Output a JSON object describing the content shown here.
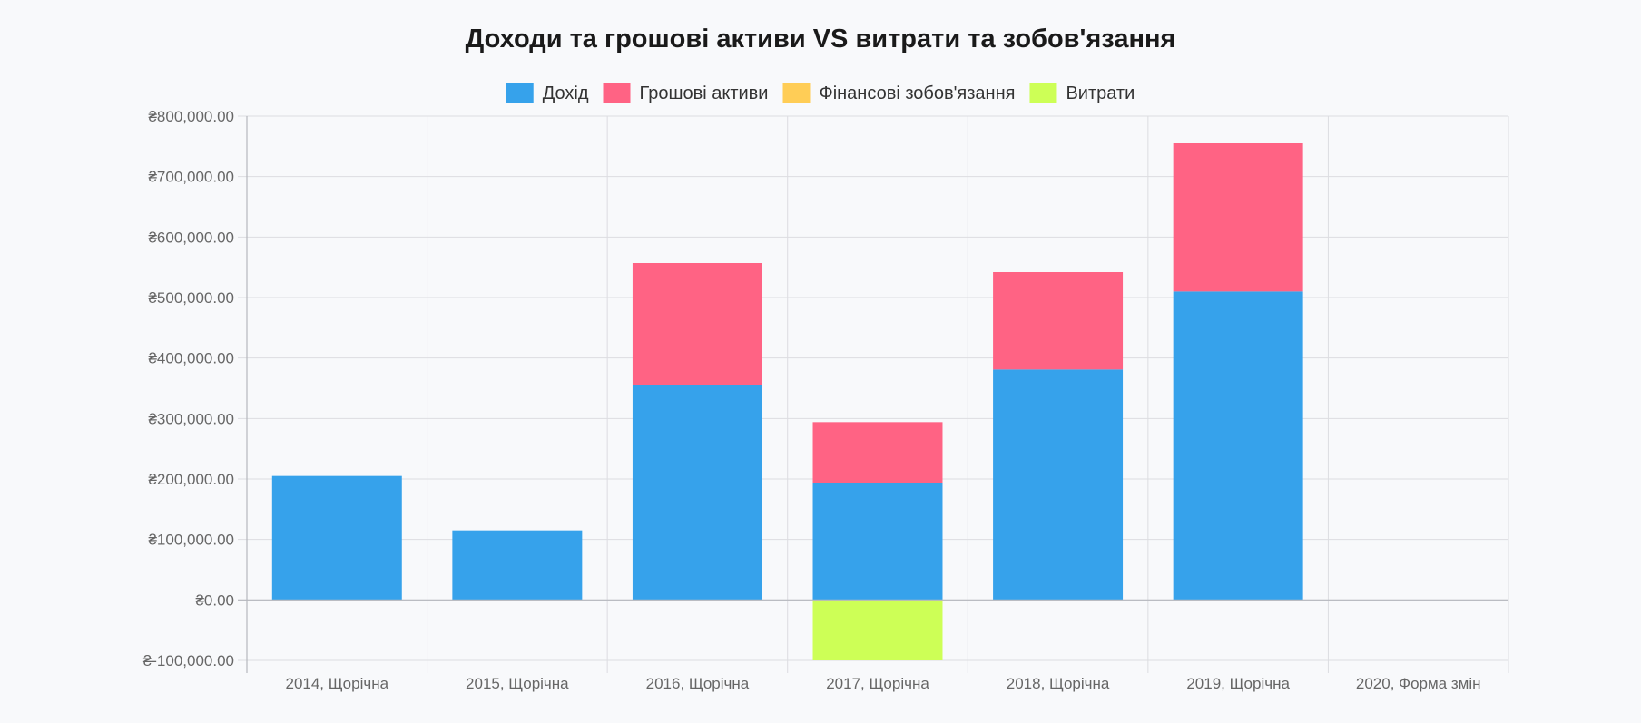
{
  "chart_data": {
    "type": "bar",
    "stacked": true,
    "title": "Доходи та грошові активи VS витрати та зобов'язання",
    "categories": [
      "2014, Щорічна",
      "2015, Щорічна",
      "2016, Щорічна",
      "2017, Щорічна",
      "2018, Щорічна",
      "2019, Щорічна",
      "2020, Форма змін"
    ],
    "series": [
      {
        "name": "Дохід",
        "color": "#36a2eb",
        "values": [
          205000,
          115000,
          356000,
          194000,
          381000,
          510000,
          0
        ]
      },
      {
        "name": "Грошові активи",
        "color": "#ff6384",
        "values": [
          0,
          0,
          201000,
          100000,
          161000,
          245000,
          0
        ]
      },
      {
        "name": "Фінансові зобов'язання",
        "color": "#ffcd56",
        "values": [
          0,
          0,
          0,
          0,
          0,
          0,
          0
        ]
      },
      {
        "name": "Витрати",
        "color": "#cdff56",
        "values": [
          0,
          0,
          0,
          -100000,
          0,
          0,
          0
        ]
      }
    ],
    "ylim": [
      -100000,
      800000
    ],
    "y_ticks": [
      {
        "value": 800000,
        "label": "₴800,000.00"
      },
      {
        "value": 700000,
        "label": "₴700,000.00"
      },
      {
        "value": 600000,
        "label": "₴600,000.00"
      },
      {
        "value": 500000,
        "label": "₴500,000.00"
      },
      {
        "value": 400000,
        "label": "₴400,000.00"
      },
      {
        "value": 300000,
        "label": "₴300,000.00"
      },
      {
        "value": 200000,
        "label": "₴200,000.00"
      },
      {
        "value": 100000,
        "label": "₴100,000.00"
      },
      {
        "value": 0,
        "label": "₴0.00"
      },
      {
        "value": -100000,
        "label": "₴-100,000.00"
      }
    ],
    "grid": true,
    "legend_position": "top"
  }
}
